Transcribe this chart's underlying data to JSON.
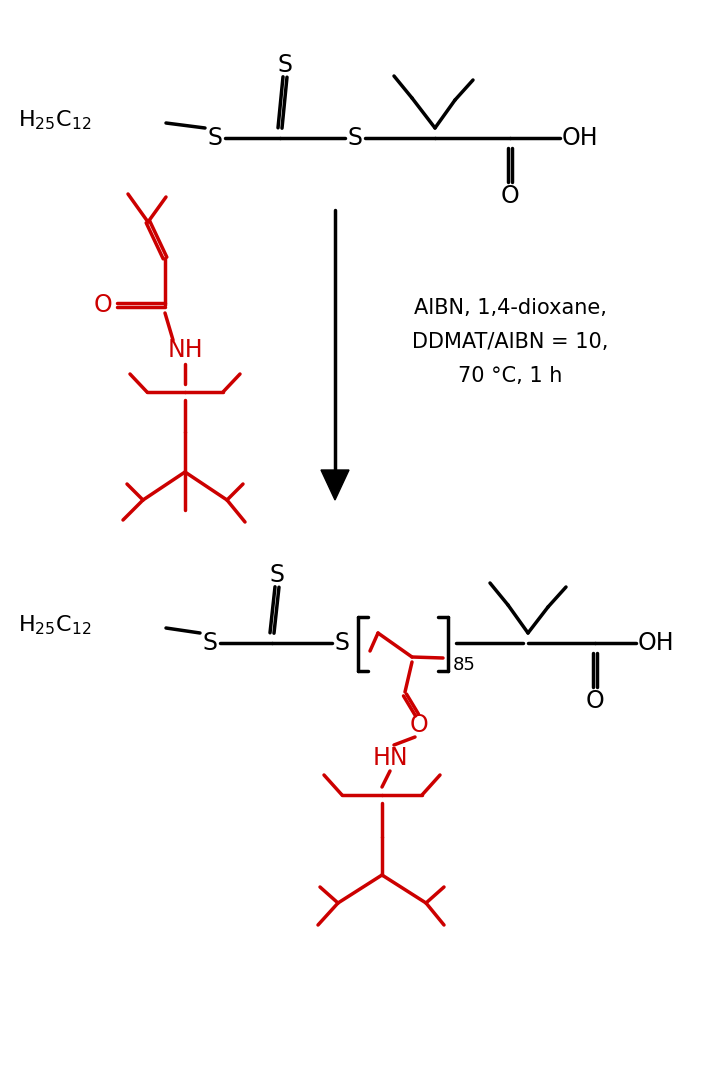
{
  "bg_color": "#ffffff",
  "black": "#000000",
  "red": "#cc0000",
  "lw": 2.5,
  "conditions": [
    "AIBN, 1,4-dioxane,",
    "DDMAT/AIBN = 10,",
    "70 °C, 1 h"
  ]
}
